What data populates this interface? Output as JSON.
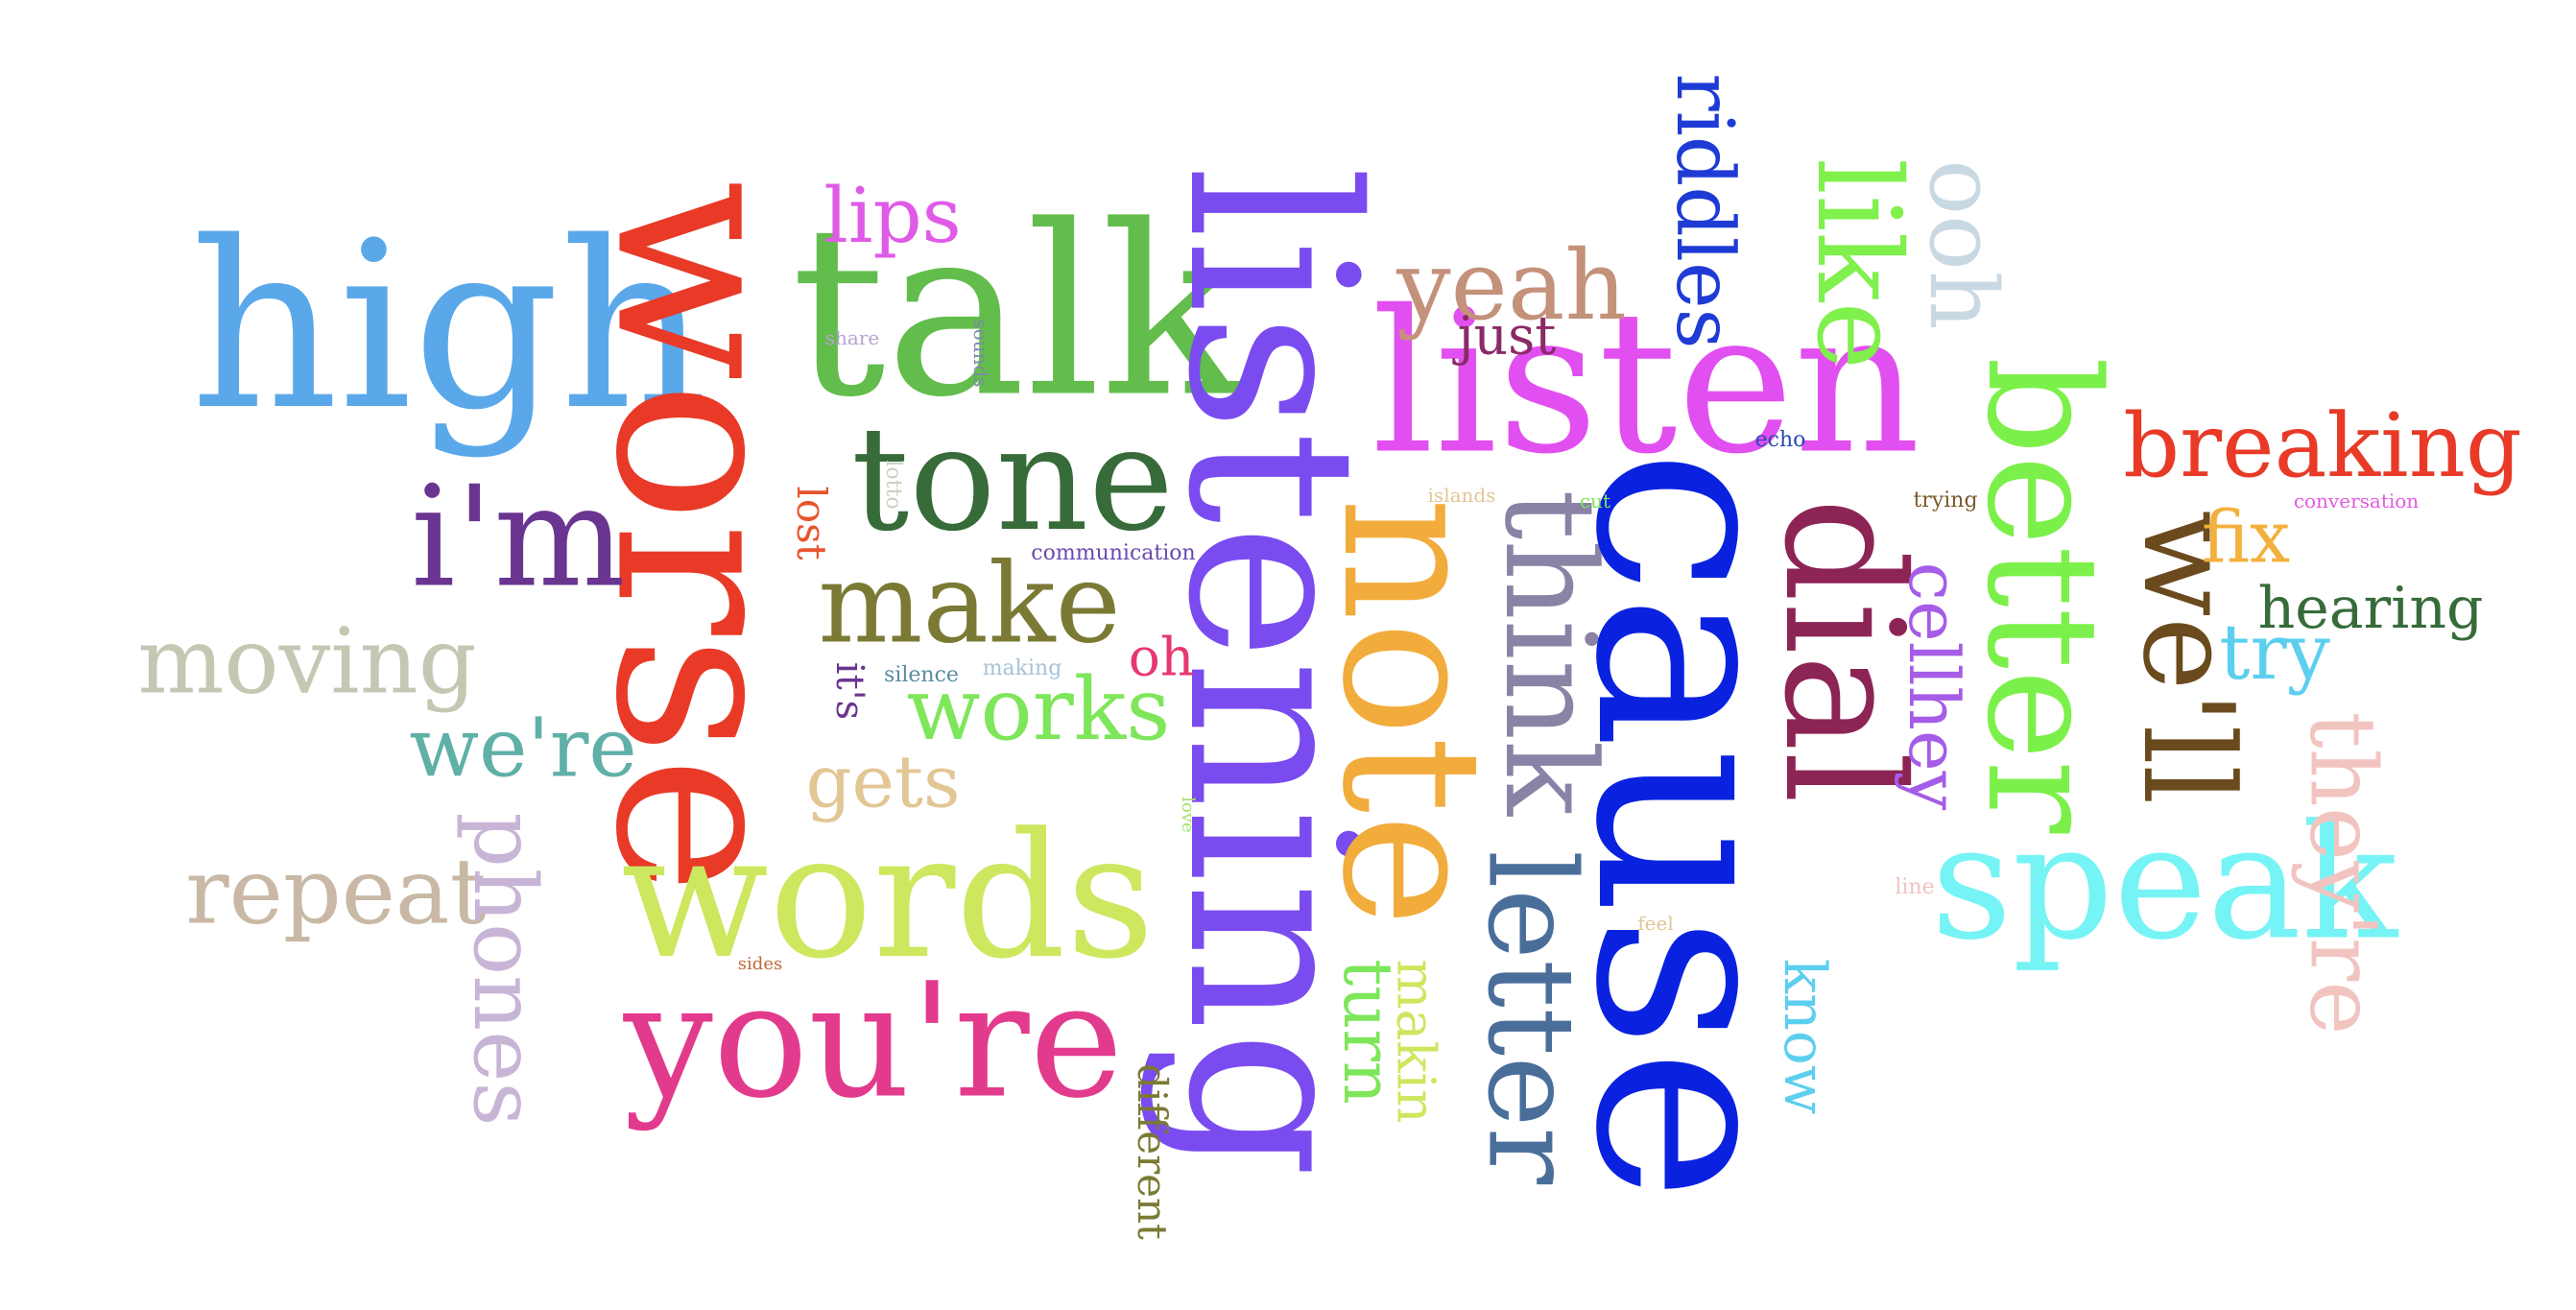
{
  "words": [
    {
      "text": "high",
      "color": "#5aa8ea"
    },
    {
      "text": "talk",
      "color": "#62bd4c"
    },
    {
      "text": "worse",
      "color": "#e83a27"
    },
    {
      "text": "lips",
      "color": "#e05ae8"
    },
    {
      "text": "listening",
      "color": "#7a4cf0"
    },
    {
      "text": "listen",
      "color": "#e24ff0"
    },
    {
      "text": "riddles",
      "color": "#1f3bd6"
    },
    {
      "text": "like",
      "color": "#7ff04c"
    },
    {
      "text": "ooh",
      "color": "#c9d9e3"
    },
    {
      "text": "yeah",
      "color": "#c4917a"
    },
    {
      "text": "just",
      "color": "#8a2a66"
    },
    {
      "text": "tone",
      "color": "#376b39"
    },
    {
      "text": "i'm",
      "color": "#6a3590"
    },
    {
      "text": "make",
      "color": "#7a7a34"
    },
    {
      "text": "moving",
      "color": "#c3c8b3"
    },
    {
      "text": "we're",
      "color": "#5fb0a7"
    },
    {
      "text": "works",
      "color": "#7ee65a"
    },
    {
      "text": "gets",
      "color": "#e2c694"
    },
    {
      "text": "oh",
      "color": "#e6386e"
    },
    {
      "text": "it's",
      "color": "#6a3590"
    },
    {
      "text": "lost",
      "color": "#e8552c"
    },
    {
      "text": "lotto",
      "color": "#c6d3bf"
    },
    {
      "text": "share",
      "color": "#b8a1d0"
    },
    {
      "text": "sounds",
      "color": "#7a8aa8"
    },
    {
      "text": "silence",
      "color": "#5a8ca0"
    },
    {
      "text": "making",
      "color": "#a7c3d8"
    },
    {
      "text": "communication",
      "color": "#6a4ab0"
    },
    {
      "text": "love",
      "color": "#a3e36b"
    },
    {
      "text": "note",
      "color": "#f2ac3b"
    },
    {
      "text": "think",
      "color": "#8b83a6"
    },
    {
      "text": "letter",
      "color": "#4a6e9a"
    },
    {
      "text": "cause",
      "color": "#0a22e0"
    },
    {
      "text": "dial",
      "color": "#8c2456"
    },
    {
      "text": "cellhey",
      "color": "#a55ce6"
    },
    {
      "text": "better",
      "color": "#7cf04a"
    },
    {
      "text": "speak",
      "color": "#76f3f5"
    },
    {
      "text": "breaking",
      "color": "#e83a27"
    },
    {
      "text": "we'll",
      "color": "#6b4a1e"
    },
    {
      "text": "fix",
      "color": "#f3b03c"
    },
    {
      "text": "hearing",
      "color": "#376b39"
    },
    {
      "text": "try",
      "color": "#5ccfef"
    },
    {
      "text": "they're",
      "color": "#f2c4c0"
    },
    {
      "text": "conversation",
      "color": "#e25ae0"
    },
    {
      "text": "trying",
      "color": "#7a5a2a"
    },
    {
      "text": "echo",
      "color": "#2a4ab0"
    },
    {
      "text": "islands",
      "color": "#e2c694"
    },
    {
      "text": "cut",
      "color": "#7ee65a"
    },
    {
      "text": "words",
      "color": "#cde75e"
    },
    {
      "text": "you're",
      "color": "#e23a8c"
    },
    {
      "text": "repeat",
      "color": "#c8b8a5"
    },
    {
      "text": "phones",
      "color": "#c8b5d6"
    },
    {
      "text": "different",
      "color": "#7a7a34"
    },
    {
      "text": "sides",
      "color": "#c06a3a"
    },
    {
      "text": "turn",
      "color": "#7ee65a"
    },
    {
      "text": "makin",
      "color": "#cde75e"
    },
    {
      "text": "know",
      "color": "#5ccfef"
    },
    {
      "text": "line",
      "color": "#f2c4c0"
    },
    {
      "text": "feel",
      "color": "#e2c694"
    }
  ]
}
